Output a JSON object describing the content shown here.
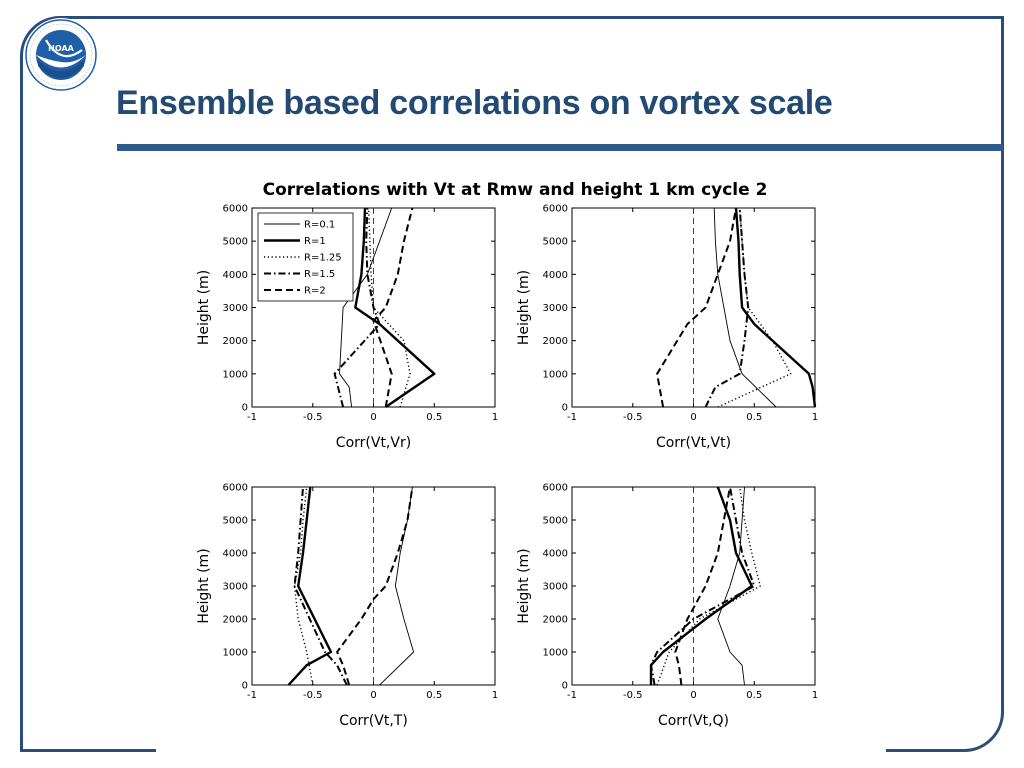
{
  "slide": {
    "title": "Ensemble based correlations on vortex scale",
    "logo_text": "NOAA",
    "logo_ring_text": "NATIONAL OCEANIC AND ATMOSPHERIC ADMINISTRATION · U.S. DEPARTMENT OF COMMERCE",
    "colors": {
      "title": "#234a73",
      "frame": "#2a4d7a",
      "rule": "#2f5a8c",
      "logo_blue": "#1f5fa8"
    }
  },
  "chart_data": {
    "type": "line",
    "title": "Correlations with Vt at Rmw and height 1 km  cycle 2",
    "legend": {
      "placement": "top-left",
      "panel": 0
    },
    "series_styles": [
      {
        "name": "R=0.1",
        "style": "thin-solid"
      },
      {
        "name": "R=1",
        "style": "thick-solid"
      },
      {
        "name": "R=1.25",
        "style": "dotted"
      },
      {
        "name": "R=1.5",
        "style": "dash-dot"
      },
      {
        "name": "R=2",
        "style": "dashed"
      }
    ],
    "panels": [
      {
        "xlabel": "Corr(Vt,Vr)",
        "ylabel": "Height (m)",
        "xlim": [
          -1,
          1
        ],
        "ylim": [
          0,
          6000
        ],
        "xticks": [
          "-1",
          "-0.5",
          "0",
          "0.5",
          "1"
        ],
        "yticks": [
          "0",
          "1000",
          "2000",
          "3000",
          "4000",
          "5000",
          "6000"
        ],
        "zero_line": true,
        "series": [
          {
            "y": [
              0,
              600,
              1000,
              3000,
              4000,
              5000,
              6000
            ],
            "x": [
              -0.18,
              -0.2,
              -0.28,
              -0.25,
              -0.05,
              0.05,
              0.15
            ]
          },
          {
            "y": [
              0,
              1000,
              2500,
              3000,
              4000,
              5000,
              6000
            ],
            "x": [
              0.1,
              0.5,
              0.05,
              -0.15,
              -0.1,
              -0.08,
              -0.07
            ]
          },
          {
            "y": [
              0,
              1000,
              2000,
              3000,
              4000,
              5000,
              6000
            ],
            "x": [
              0.22,
              0.3,
              0.25,
              0.0,
              -0.02,
              -0.03,
              -0.04
            ]
          },
          {
            "y": [
              0,
              1000,
              2500,
              3000,
              4000,
              5000,
              6000
            ],
            "x": [
              -0.25,
              -0.32,
              0.05,
              0.0,
              -0.05,
              -0.06,
              -0.05
            ]
          },
          {
            "y": [
              0,
              1000,
              2600,
              3000,
              4000,
              5000,
              6000
            ],
            "x": [
              0.1,
              0.15,
              0.0,
              0.1,
              0.2,
              0.25,
              0.32
            ]
          }
        ]
      },
      {
        "xlabel": "Corr(Vt,Vt)",
        "ylabel": "Height (m)",
        "xlim": [
          -1,
          1
        ],
        "ylim": [
          0,
          6000
        ],
        "xticks": [
          "-1",
          "-0.5",
          "0",
          "0.5",
          "1"
        ],
        "yticks": [
          "0",
          "1000",
          "2000",
          "3000",
          "4000",
          "5000",
          "6000"
        ],
        "zero_line": true,
        "series": [
          {
            "y": [
              0,
              1000,
              2000,
              3000,
              4000,
              5000,
              6000
            ],
            "x": [
              0.68,
              0.4,
              0.3,
              0.25,
              0.2,
              0.18,
              0.17
            ]
          },
          {
            "y": [
              0,
              600,
              1000,
              2500,
              3000,
              4000,
              5000,
              6000
            ],
            "x": [
              1.0,
              0.98,
              0.95,
              0.5,
              0.4,
              0.38,
              0.37,
              0.35
            ]
          },
          {
            "y": [
              0,
              1000,
              2000,
              3000,
              4000,
              5000,
              6000
            ],
            "x": [
              0.2,
              0.8,
              0.65,
              0.45,
              0.42,
              0.4,
              0.38
            ]
          },
          {
            "y": [
              0,
              600,
              1000,
              2000,
              3000,
              4000,
              5000,
              6000
            ],
            "x": [
              0.1,
              0.18,
              0.38,
              0.42,
              0.45,
              0.42,
              0.4,
              0.38
            ]
          },
          {
            "y": [
              0,
              1000,
              2500,
              3000,
              4000,
              5000,
              6000
            ],
            "x": [
              -0.25,
              -0.3,
              -0.05,
              0.1,
              0.2,
              0.3,
              0.35
            ]
          }
        ]
      },
      {
        "xlabel": "Corr(Vt,T)",
        "ylabel": "Height (m)",
        "xlim": [
          -1,
          1
        ],
        "ylim": [
          0,
          6000
        ],
        "xticks": [
          "-1",
          "-0.5",
          "0",
          "0.5",
          "1"
        ],
        "yticks": [
          "0",
          "1000",
          "2000",
          "3000",
          "4000",
          "5000",
          "6000"
        ],
        "zero_line": true,
        "series": [
          {
            "y": [
              0,
              1000,
              2000,
              3000,
              4000,
              5000,
              6000
            ],
            "x": [
              0.05,
              0.33,
              0.25,
              0.18,
              0.22,
              0.28,
              0.32
            ]
          },
          {
            "y": [
              0,
              600,
              1000,
              3000,
              4000,
              5000,
              6000
            ],
            "x": [
              -0.7,
              -0.55,
              -0.35,
              -0.62,
              -0.58,
              -0.55,
              -0.52
            ]
          },
          {
            "y": [
              0,
              1000,
              2000,
              3000,
              4000,
              5000,
              6000
            ],
            "x": [
              -0.5,
              -0.55,
              -0.62,
              -0.65,
              -0.6,
              -0.58,
              -0.55
            ]
          },
          {
            "y": [
              0,
              600,
              1000,
              3000,
              4000,
              5000,
              6000
            ],
            "x": [
              -0.22,
              -0.3,
              -0.4,
              -0.65,
              -0.62,
              -0.6,
              -0.58
            ]
          },
          {
            "y": [
              0,
              600,
              1000,
              2000,
              2600,
              3000,
              4000,
              5000,
              6000
            ],
            "x": [
              -0.2,
              -0.25,
              -0.3,
              -0.1,
              0.0,
              0.1,
              0.2,
              0.28,
              0.32
            ]
          }
        ]
      },
      {
        "xlabel": "Corr(Vt,Q)",
        "ylabel": "Height (m)",
        "xlim": [
          -1,
          1
        ],
        "ylim": [
          0,
          6000
        ],
        "xticks": [
          "-1",
          "-0.5",
          "0",
          "0.5",
          "1"
        ],
        "yticks": [
          "0",
          "1000",
          "2000",
          "3000",
          "4000",
          "5000",
          "6000"
        ],
        "zero_line": true,
        "series": [
          {
            "y": [
              0,
              600,
              1000,
              2000,
              3000,
              4000,
              5000,
              6000
            ],
            "x": [
              0.42,
              0.4,
              0.3,
              0.2,
              0.3,
              0.38,
              0.4,
              0.42
            ]
          },
          {
            "y": [
              0,
              600,
              1000,
              2000,
              3000,
              4000,
              5000,
              6000
            ],
            "x": [
              -0.35,
              -0.35,
              -0.25,
              0.1,
              0.48,
              0.35,
              0.3,
              0.2
            ]
          },
          {
            "y": [
              0,
              1000,
              2000,
              3000,
              4000,
              5000,
              6000
            ],
            "x": [
              -0.3,
              -0.2,
              0.05,
              0.55,
              0.48,
              0.42,
              0.38
            ]
          },
          {
            "y": [
              0,
              600,
              1000,
              2000,
              3000,
              4000,
              5000,
              6000
            ],
            "x": [
              -0.32,
              -0.35,
              -0.3,
              0.0,
              0.5,
              0.4,
              0.35,
              0.3
            ]
          },
          {
            "y": [
              0,
              600,
              1000,
              2000,
              3000,
              4000,
              5000,
              6000
            ],
            "x": [
              -0.1,
              -0.12,
              -0.15,
              -0.05,
              0.1,
              0.2,
              0.25,
              0.3
            ]
          }
        ]
      }
    ]
  }
}
